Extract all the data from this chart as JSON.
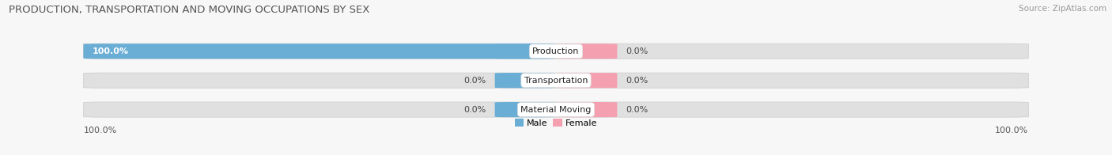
{
  "title": "PRODUCTION, TRANSPORTATION AND MOVING OCCUPATIONS BY SEX",
  "source": "Source: ZipAtlas.com",
  "categories": [
    "Production",
    "Transportation",
    "Material Moving"
  ],
  "male_values": [
    100.0,
    0.0,
    0.0
  ],
  "female_values": [
    0.0,
    0.0,
    0.0
  ],
  "male_color": "#6aaed6",
  "female_color": "#f4a0b0",
  "bar_bg_color": "#e0e0e0",
  "title_fontsize": 9.5,
  "source_fontsize": 7.5,
  "label_fontsize": 8,
  "legend_label_male": "Male",
  "legend_label_female": "Female",
  "x_left_label": "100.0%",
  "x_right_label": "100.0%",
  "fig_bg": "#f7f7f7"
}
